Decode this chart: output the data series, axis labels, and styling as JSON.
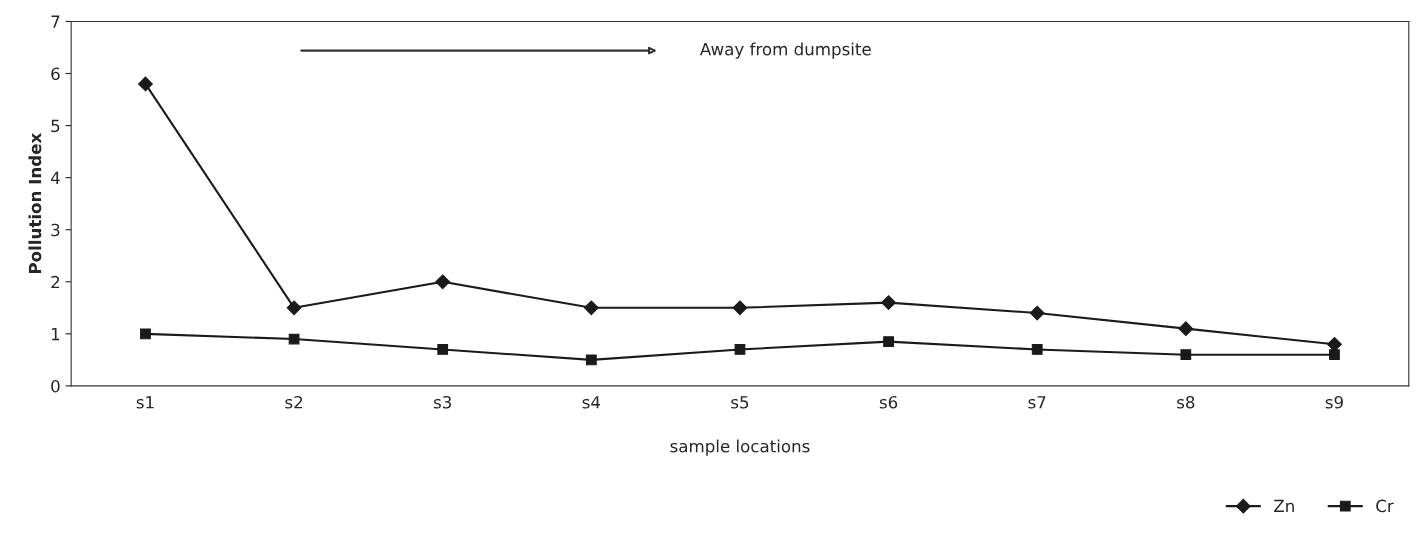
{
  "chart_data": {
    "type": "line",
    "xlabel": "sample locations",
    "ylabel": "Pollution Index",
    "categories": [
      "s1",
      "s2",
      "s3",
      "s4",
      "s5",
      "s6",
      "s7",
      "s8",
      "s9"
    ],
    "series": [
      {
        "name": "Zn",
        "color": "#1a1a1a",
        "marker": "diamond",
        "values": [
          5.8,
          1.5,
          2.0,
          1.5,
          1.5,
          1.6,
          1.4,
          1.1,
          0.8
        ]
      },
      {
        "name": "Cr",
        "color": "#1a1a1a",
        "marker": "square",
        "values": [
          1.0,
          0.9,
          0.7,
          0.5,
          0.7,
          0.85,
          0.7,
          0.6,
          0.6
        ]
      }
    ],
    "ylim": [
      0,
      7
    ],
    "yticks": [
      0,
      1,
      2,
      3,
      4,
      5,
      6,
      7
    ],
    "annotations": [
      "Away from dumpsite"
    ],
    "legend": "bottom right",
    "grid": false,
    "line_style": "solid"
  }
}
